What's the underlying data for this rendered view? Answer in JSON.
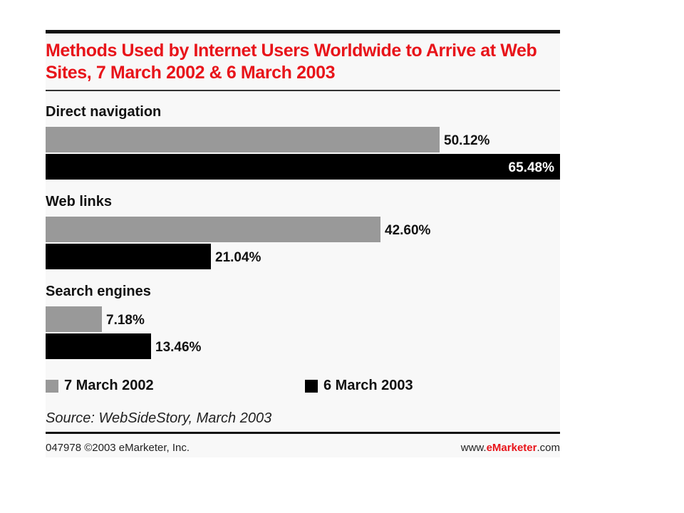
{
  "title": "Methods Used by Internet Users Worldwide to Arrive at Web Sites, 7 March 2002 & 6 March 2003",
  "source": "Source: WebSideStory, March 2003",
  "footer": {
    "left": "047978 ©2003 eMarketer, Inc.",
    "right_prefix": "www.",
    "right_brand": "eMarketer",
    "right_suffix": ".com"
  },
  "colors": {
    "title": "#e8141a",
    "series_2002": "#999999",
    "series_2003": "#000000"
  },
  "chart_data": {
    "type": "bar",
    "orientation": "horizontal",
    "title": "Methods Used by Internet Users Worldwide to Arrive at Web Sites, 7 March 2002 & 6 March 2003",
    "categories": [
      "Direct navigation",
      "Web links",
      "Search engines"
    ],
    "series": [
      {
        "name": "7 March 2002",
        "values": [
          50.12,
          42.6,
          7.18
        ],
        "labels": [
          "50.12%",
          "42.60%",
          "7.18%"
        ],
        "color": "#999999"
      },
      {
        "name": "6 March 2003",
        "values": [
          65.48,
          21.04,
          13.46
        ],
        "labels": [
          "65.48%",
          "21.04%",
          "13.46%"
        ],
        "color": "#000000"
      }
    ],
    "unit": "%",
    "xlim": [
      0,
      65.48
    ],
    "legend": "bottom",
    "grid": false
  }
}
